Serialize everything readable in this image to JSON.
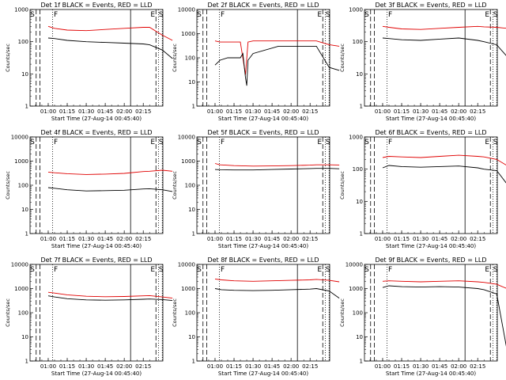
{
  "chart_data": {
    "type": "line",
    "time_axis": {
      "xlabel": "Start Time (27-Aug-14 00:45:40)",
      "ticks": [
        "01:00",
        "01:15",
        "01:30",
        "01:45",
        "02:00",
        "02:15"
      ]
    },
    "y_axis": {
      "ylabel": "Counts/sec",
      "scale": "log",
      "ticks": [
        "1",
        "10",
        "100",
        "1000"
      ]
    },
    "series_colors": {
      "events": "#000000",
      "lld": "#e00000"
    },
    "marker_letters": [
      "S",
      "F",
      "E",
      "S"
    ],
    "panels": [
      {
        "title": "Det 1f BLACK = Events, RED = LLD",
        "ymax_label": "1000",
        "ylim": [
          1,
          1000
        ],
        "events": [
          [
            60,
            130
          ],
          [
            65,
            125
          ],
          [
            75,
            110
          ],
          [
            90,
            100
          ],
          [
            105,
            95
          ],
          [
            120,
            90
          ],
          [
            135,
            85
          ],
          [
            140,
            80
          ],
          [
            150,
            55
          ],
          [
            158,
            30
          ]
        ],
        "lld": [
          [
            60,
            300
          ],
          [
            65,
            260
          ],
          [
            75,
            230
          ],
          [
            90,
            220
          ],
          [
            105,
            240
          ],
          [
            120,
            260
          ],
          [
            135,
            280
          ],
          [
            140,
            280
          ],
          [
            150,
            160
          ],
          [
            158,
            110
          ]
        ]
      },
      {
        "title": "Det 2f BLACK = Events, RED = LLD",
        "ymax_label": "10000",
        "ylim": [
          1,
          10000
        ],
        "events": [
          [
            60,
            50
          ],
          [
            64,
            80
          ],
          [
            70,
            100
          ],
          [
            80,
            100
          ],
          [
            82,
            150
          ],
          [
            84,
            15
          ],
          [
            85,
            7
          ],
          [
            86,
            80
          ],
          [
            90,
            150
          ],
          [
            110,
            300
          ],
          [
            140,
            300
          ],
          [
            150,
            40
          ],
          [
            158,
            30
          ]
        ],
        "lld": [
          [
            60,
            500
          ],
          [
            64,
            450
          ],
          [
            75,
            450
          ],
          [
            80,
            450
          ],
          [
            84,
            20
          ],
          [
            86,
            450
          ],
          [
            90,
            500
          ],
          [
            120,
            500
          ],
          [
            140,
            500
          ],
          [
            150,
            350
          ],
          [
            158,
            300
          ]
        ]
      },
      {
        "title": "Det 3f BLACK = Events, RED = LLD",
        "ymax_label": "1000",
        "ylim": [
          1,
          1000
        ],
        "events": [
          [
            60,
            130
          ],
          [
            65,
            125
          ],
          [
            75,
            115
          ],
          [
            90,
            110
          ],
          [
            105,
            120
          ],
          [
            120,
            130
          ],
          [
            135,
            110
          ],
          [
            140,
            100
          ],
          [
            150,
            80
          ],
          [
            158,
            35
          ]
        ],
        "lld": [
          [
            60,
            300
          ],
          [
            65,
            280
          ],
          [
            75,
            250
          ],
          [
            90,
            240
          ],
          [
            105,
            260
          ],
          [
            120,
            280
          ],
          [
            135,
            300
          ],
          [
            140,
            290
          ],
          [
            150,
            280
          ],
          [
            158,
            260
          ]
        ]
      },
      {
        "title": "Det 4f BLACK = Events, RED = LLD",
        "ymax_label": "10000",
        "ylim": [
          1,
          10000
        ],
        "events": [
          [
            60,
            80
          ],
          [
            65,
            75
          ],
          [
            75,
            65
          ],
          [
            90,
            58
          ],
          [
            105,
            60
          ],
          [
            120,
            62
          ],
          [
            135,
            70
          ],
          [
            140,
            72
          ],
          [
            150,
            65
          ],
          [
            158,
            55
          ]
        ],
        "lld": [
          [
            60,
            350
          ],
          [
            65,
            330
          ],
          [
            75,
            300
          ],
          [
            90,
            280
          ],
          [
            105,
            290
          ],
          [
            120,
            310
          ],
          [
            135,
            370
          ],
          [
            140,
            380
          ],
          [
            150,
            420
          ],
          [
            158,
            380
          ]
        ]
      },
      {
        "title": "Det 5f BLACK = Events, RED = LLD",
        "ymax_label": "10000",
        "ylim": [
          1,
          10000
        ],
        "events": [
          [
            60,
            450
          ],
          [
            64,
            440
          ],
          [
            75,
            430
          ],
          [
            90,
            430
          ],
          [
            105,
            450
          ],
          [
            120,
            470
          ],
          [
            135,
            490
          ],
          [
            140,
            500
          ],
          [
            150,
            500
          ],
          [
            158,
            480
          ]
        ],
        "lld": [
          [
            60,
            800
          ],
          [
            64,
            700
          ],
          [
            75,
            650
          ],
          [
            90,
            620
          ],
          [
            105,
            630
          ],
          [
            120,
            650
          ],
          [
            135,
            680
          ],
          [
            140,
            700
          ],
          [
            150,
            700
          ],
          [
            158,
            690
          ]
        ]
      },
      {
        "title": "Det 6f BLACK = Events, RED = LLD",
        "ymax_label": "1000",
        "ylim": [
          1,
          1000
        ],
        "events": [
          [
            60,
            110
          ],
          [
            65,
            130
          ],
          [
            75,
            120
          ],
          [
            90,
            115
          ],
          [
            105,
            120
          ],
          [
            120,
            125
          ],
          [
            135,
            110
          ],
          [
            140,
            100
          ],
          [
            150,
            90
          ],
          [
            158,
            35
          ]
        ],
        "lld": [
          [
            60,
            230
          ],
          [
            65,
            250
          ],
          [
            75,
            240
          ],
          [
            90,
            230
          ],
          [
            105,
            250
          ],
          [
            120,
            270
          ],
          [
            135,
            250
          ],
          [
            140,
            240
          ],
          [
            150,
            200
          ],
          [
            158,
            130
          ]
        ]
      },
      {
        "title": "Det 7f BLACK = Events, RED = LLD",
        "ymax_label": "10000",
        "ylim": [
          1,
          10000
        ],
        "events": [
          [
            60,
            500
          ],
          [
            65,
            450
          ],
          [
            75,
            380
          ],
          [
            90,
            340
          ],
          [
            105,
            330
          ],
          [
            120,
            340
          ],
          [
            135,
            360
          ],
          [
            140,
            370
          ],
          [
            150,
            350
          ],
          [
            158,
            320
          ]
        ],
        "lld": [
          [
            60,
            700
          ],
          [
            65,
            650
          ],
          [
            75,
            550
          ],
          [
            90,
            480
          ],
          [
            105,
            460
          ],
          [
            120,
            470
          ],
          [
            135,
            500
          ],
          [
            140,
            510
          ],
          [
            150,
            450
          ],
          [
            158,
            400
          ]
        ]
      },
      {
        "title": "Det 8f BLACK = Events, RED = LLD",
        "ymax_label": "10000",
        "ylim": [
          1,
          10000
        ],
        "events": [
          [
            60,
            1000
          ],
          [
            65,
            900
          ],
          [
            75,
            850
          ],
          [
            90,
            820
          ],
          [
            105,
            850
          ],
          [
            120,
            900
          ],
          [
            135,
            950
          ],
          [
            140,
            1000
          ],
          [
            150,
            800
          ],
          [
            158,
            400
          ]
        ],
        "lld": [
          [
            60,
            2500
          ],
          [
            65,
            2300
          ],
          [
            75,
            2100
          ],
          [
            90,
            2000
          ],
          [
            105,
            2100
          ],
          [
            120,
            2200
          ],
          [
            135,
            2300
          ],
          [
            140,
            2400
          ],
          [
            150,
            2200
          ],
          [
            158,
            1900
          ]
        ]
      },
      {
        "title": "Det 9f BLACK = Events, RED = LLD",
        "ymax_label": "10000",
        "ylim": [
          1,
          10000
        ],
        "events": [
          [
            60,
            1100
          ],
          [
            65,
            1300
          ],
          [
            75,
            1200
          ],
          [
            90,
            1150
          ],
          [
            105,
            1200
          ],
          [
            120,
            1150
          ],
          [
            135,
            1000
          ],
          [
            140,
            900
          ],
          [
            150,
            600
          ],
          [
            158,
            3
          ]
        ],
        "lld": [
          [
            60,
            2000
          ],
          [
            65,
            2100
          ],
          [
            75,
            2000
          ],
          [
            90,
            1900
          ],
          [
            105,
            2000
          ],
          [
            120,
            2100
          ],
          [
            135,
            1900
          ],
          [
            140,
            1800
          ],
          [
            150,
            1500
          ],
          [
            158,
            1000
          ]
        ]
      }
    ]
  }
}
